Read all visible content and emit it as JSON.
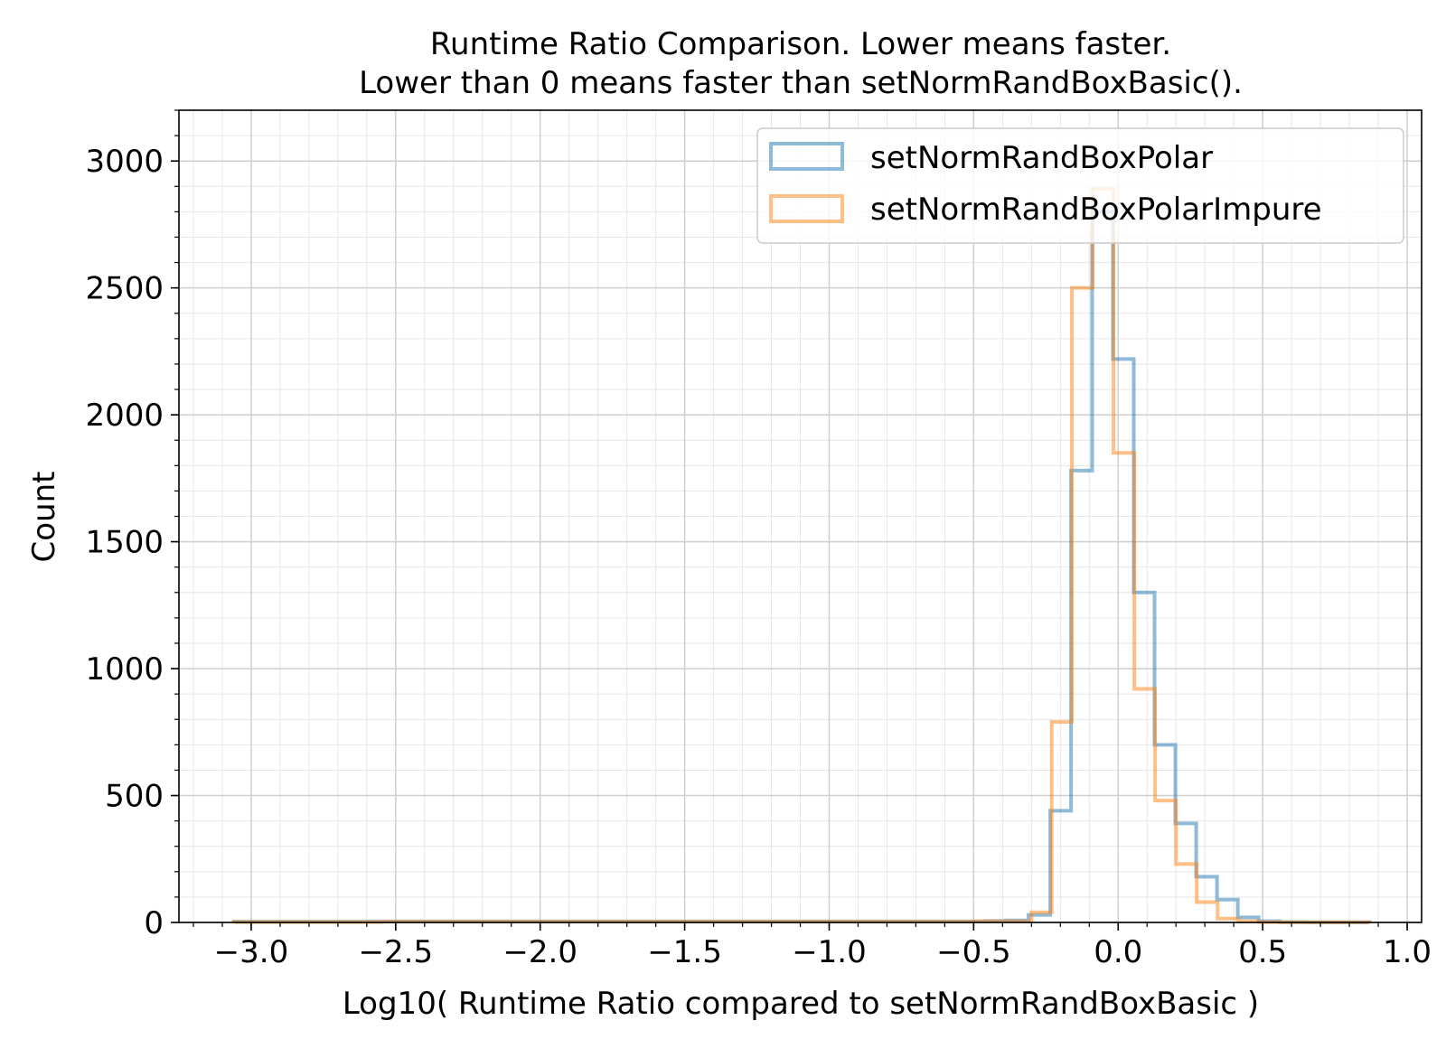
{
  "chart_data": {
    "type": "histogram",
    "title": "Runtime Ratio Comparison. Lower means faster.",
    "subtitle": "Lower than 0 means faster than setNormRandBoxBasic().",
    "xlabel": "Log10( Runtime Ratio compared to setNormRandBoxBasic )",
    "ylabel": "Count",
    "xlim": [
      -3.25,
      1.05
    ],
    "ylim": [
      0,
      3200
    ],
    "x_ticks": [
      -3.0,
      -2.5,
      -2.0,
      -1.5,
      -1.0,
      -0.5,
      0.0,
      0.5,
      1.0
    ],
    "x_tick_labels": [
      "−3.0",
      "−2.5",
      "−2.0",
      "−1.5",
      "−1.0",
      "−0.5",
      "0.0",
      "0.5",
      "1.0"
    ],
    "y_ticks": [
      0,
      500,
      1000,
      1500,
      2000,
      2500,
      3000
    ],
    "y_tick_labels": [
      "0",
      "500",
      "1000",
      "1500",
      "2000",
      "2500",
      "3000"
    ],
    "x_minor_step": 0.1,
    "y_minor_step": 100,
    "grid": true,
    "legend_position": "top-right",
    "series": [
      {
        "name": "setNormRandBoxPolar",
        "color": "#1f77b4",
        "bin_edges": [
          -3.06,
          -2.6,
          -0.46,
          -0.39,
          -0.31,
          -0.235,
          -0.163,
          -0.09,
          -0.018,
          0.054,
          0.126,
          0.198,
          0.27,
          0.342,
          0.414,
          0.486,
          0.56,
          0.65,
          0.87
        ],
        "counts": [
          3,
          4,
          6,
          8,
          30,
          440,
          1780,
          2800,
          2220,
          1300,
          700,
          390,
          180,
          90,
          20,
          5,
          2,
          1
        ]
      },
      {
        "name": "setNormRandBoxPolarImpure",
        "color": "#ff7f0e",
        "bin_edges": [
          -3.06,
          -2.55,
          -0.5,
          -0.3,
          -0.23,
          -0.16,
          -0.088,
          -0.016,
          0.056,
          0.128,
          0.2,
          0.272,
          0.344,
          0.416,
          0.488,
          0.56,
          0.87
        ],
        "counts": [
          2,
          3,
          5,
          40,
          790,
          2500,
          2890,
          1850,
          920,
          480,
          230,
          80,
          15,
          5,
          2,
          1
        ]
      }
    ]
  }
}
